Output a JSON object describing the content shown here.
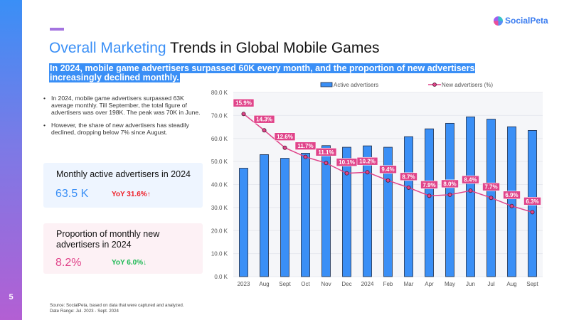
{
  "page_number": "5",
  "logo": {
    "text": "SocialPeta"
  },
  "title": {
    "highlight": "Overall Marketing",
    "rest": " Trends in Global Mobile Games"
  },
  "subtitle": "In 2024, mobile game advertisers surpassed 60K every month, and the proportion of new advertisers increasingly declined monthly.",
  "bullets": [
    "In 2024, mobile game advertisers surpassed 63K average monthly. Till September, the total figure of advertisers was over 198K. The peak was 70K in June.",
    "However, the share of new advertisers has steadily declined, dropping below 7% since August."
  ],
  "card_active": {
    "title": "Monthly active advertisers in 2024",
    "value": "63.5 K",
    "yoy": "YoY 31.6%↑"
  },
  "card_new": {
    "title": "Proportion of monthly new advertisers in 2024",
    "value": "8.2%",
    "yoy": "YoY 6.0%↓"
  },
  "source": [
    "Source: SocialPeta, based on data that were captured and analyzed.",
    "Date Range: Jul. 2023 - Sept. 2024"
  ],
  "colors": {
    "blue": "#3a8ff6",
    "pink": "#e0448a",
    "green": "#1db954",
    "red": "#ee1c25"
  },
  "chart_data": {
    "type": "bar",
    "categories": [
      "2023",
      "Aug",
      "Sept",
      "Oct",
      "Nov",
      "Dec",
      "2024",
      "Feb",
      "Mar",
      "Apr",
      "May",
      "Jun",
      "Jul",
      "Aug",
      "Sept"
    ],
    "series": [
      {
        "name": "Active advertisers",
        "type": "bar",
        "unit": "K",
        "values": [
          47.1,
          53.0,
          51.4,
          53.6,
          56.9,
          56.2,
          56.8,
          56.2,
          60.8,
          64.2,
          66.6,
          69.4,
          68.4,
          65.1,
          63.5
        ]
      },
      {
        "name": "New advertisers (%)",
        "type": "line",
        "unit": "%",
        "values": [
          15.9,
          14.3,
          12.6,
          11.7,
          11.1,
          10.1,
          10.2,
          9.4,
          8.7,
          7.9,
          8.0,
          8.4,
          7.7,
          6.9,
          6.3
        ],
        "labels": [
          "15.9%",
          "14.3%",
          "12.6%",
          "11.7%",
          "11.1%",
          "10.1%",
          "10.2%",
          "9.4%",
          "8.7%",
          "7.9%",
          "8.0%",
          "8.4%",
          "7.7%",
          "6.9%",
          "6.3%"
        ]
      }
    ],
    "yticks": [
      "0.0 K",
      "10.0 K",
      "20.0 K",
      "30.0 K",
      "40.0 K",
      "50.0 K",
      "60.0 K",
      "70.0 K",
      "80.0 K"
    ],
    "ylim": [
      0,
      80
    ],
    "y2lim": [
      0,
      18
    ],
    "legend": "top",
    "grid": true
  }
}
